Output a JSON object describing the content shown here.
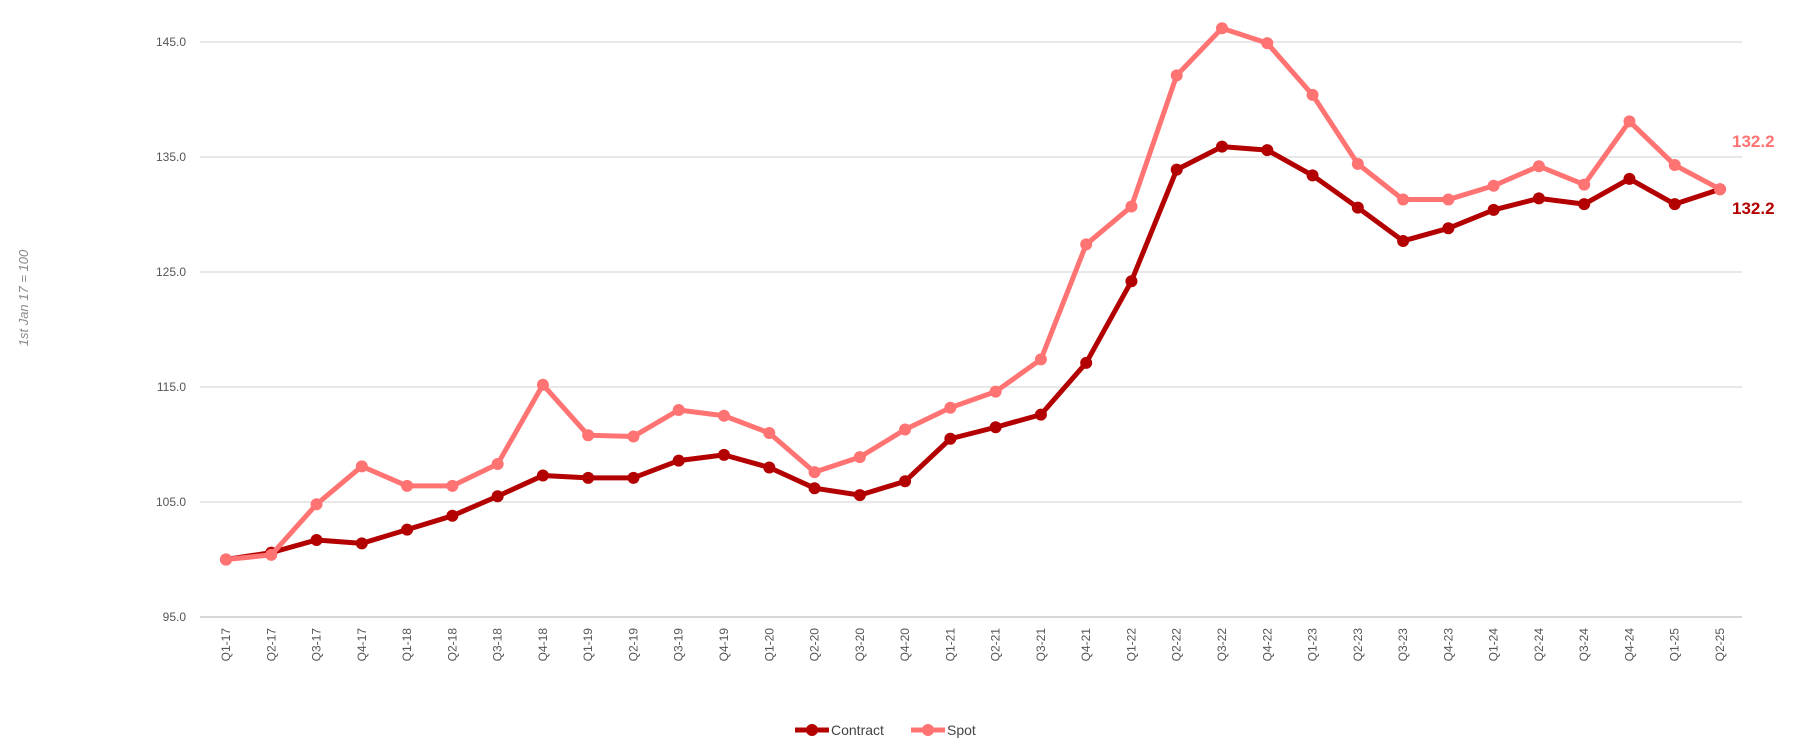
{
  "chart_data": {
    "type": "line",
    "title": "",
    "xlabel": "",
    "ylabel": "1st Jan 17 = 100",
    "ylim": [
      95,
      147
    ],
    "yticks": [
      95.0,
      105.0,
      115.0,
      125.0,
      135.0,
      145.0
    ],
    "ytick_labels": [
      "95.0",
      "105.0",
      "115.0",
      "125.0",
      "135.0",
      "145.0"
    ],
    "grid": true,
    "legend_position": "bottom",
    "categories": [
      "Q1-17",
      "Q2-17",
      "Q3-17",
      "Q4-17",
      "Q1-18",
      "Q2-18",
      "Q3-18",
      "Q4-18",
      "Q1-19",
      "Q2-19",
      "Q3-19",
      "Q4-19",
      "Q1-20",
      "Q2-20",
      "Q3-20",
      "Q4-20",
      "Q1-21",
      "Q2-21",
      "Q3-21",
      "Q4-21",
      "Q1-22",
      "Q2-22",
      "Q3-22",
      "Q4-22",
      "Q1-23",
      "Q2-23",
      "Q3-23",
      "Q4-23",
      "Q1-24",
      "Q2-24",
      "Q3-24",
      "Q4-24",
      "Q1-25",
      "Q2-25"
    ],
    "series": [
      {
        "name": "Contract",
        "color": "#b30000",
        "values": [
          100.0,
          100.6,
          101.7,
          101.4,
          102.6,
          103.8,
          105.5,
          107.3,
          107.1,
          107.1,
          108.6,
          109.1,
          108.0,
          106.2,
          105.6,
          106.8,
          110.5,
          111.5,
          112.6,
          117.1,
          124.2,
          133.9,
          135.9,
          135.6,
          133.4,
          130.6,
          127.7,
          128.8,
          130.4,
          131.4,
          130.9,
          133.1,
          130.9,
          132.2
        ],
        "end_label": "132.2"
      },
      {
        "name": "Spot",
        "color": "#ff7373",
        "values": [
          100.0,
          100.4,
          104.8,
          108.1,
          106.4,
          106.4,
          108.3,
          115.2,
          110.8,
          110.7,
          113.0,
          112.5,
          111.0,
          107.6,
          108.9,
          111.3,
          113.2,
          114.6,
          117.4,
          127.4,
          130.7,
          142.1,
          146.2,
          144.9,
          140.4,
          134.4,
          131.3,
          131.3,
          132.5,
          134.2,
          132.6,
          138.1,
          134.3,
          132.2
        ],
        "end_label": "132.2"
      }
    ]
  }
}
